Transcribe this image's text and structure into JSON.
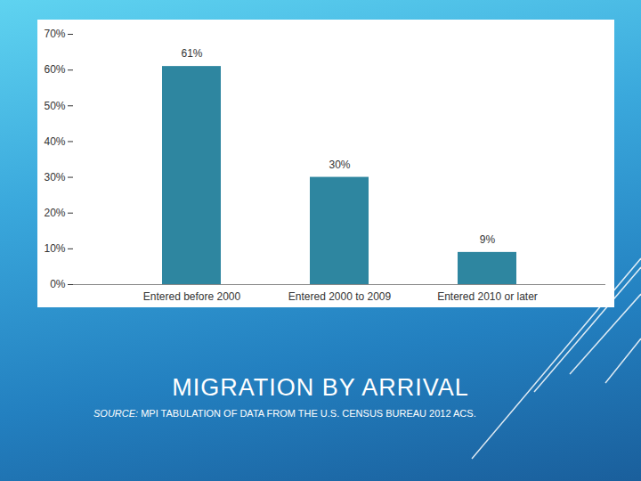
{
  "chart_data": {
    "type": "bar",
    "title": "MIGRATION BY ARRIVAL",
    "caption": "SOURCE: MPI TABULATION OF DATA FROM THE U.S. CENSUS BUREAU 2012 ACS.",
    "categories": [
      "Entered before 2000",
      "Entered 2000 to 2009",
      "Entered 2010 or later"
    ],
    "values": [
      61,
      30,
      9
    ],
    "value_labels": [
      "61%",
      "30%",
      "9%"
    ],
    "color": "#2e86a0",
    "ylim": [
      0,
      70
    ],
    "yticks": [
      {
        "value": 0,
        "label": "0%"
      },
      {
        "value": 10,
        "label": "10%"
      },
      {
        "value": 20,
        "label": "20%"
      },
      {
        "value": 30,
        "label": "30%"
      },
      {
        "value": 40,
        "label": "40%"
      },
      {
        "value": 50,
        "label": "50%"
      },
      {
        "value": 60,
        "label": "60%"
      },
      {
        "value": 70,
        "label": "70%"
      }
    ],
    "grid": false,
    "data_labels": true
  }
}
